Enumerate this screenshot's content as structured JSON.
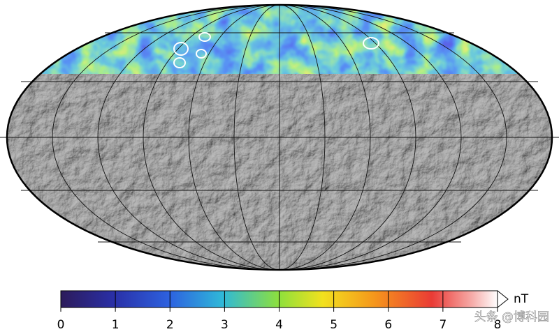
{
  "colorbar": {
    "unit": "nT",
    "lim": [
      0,
      8
    ],
    "ticks": [
      0,
      1,
      2,
      3,
      4,
      5,
      6,
      7,
      8
    ]
  },
  "watermark": "头条 @博科园"
}
